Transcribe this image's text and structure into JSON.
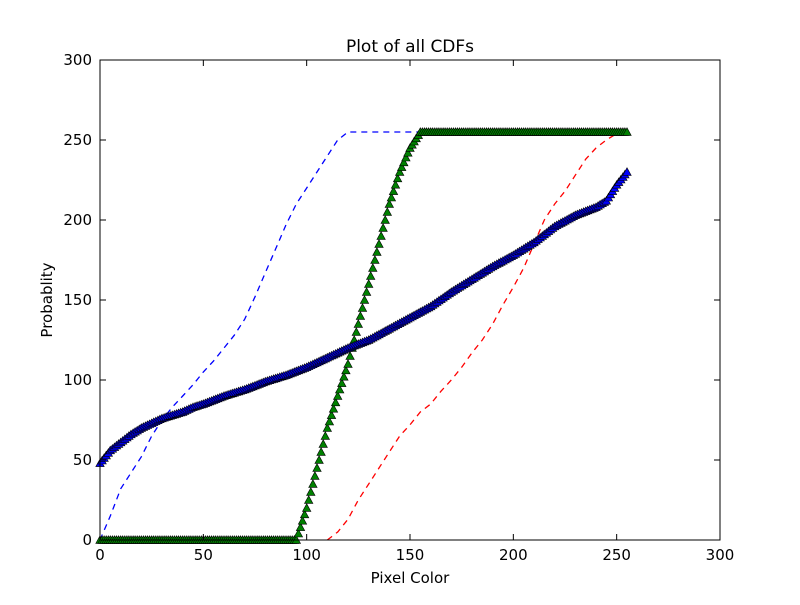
{
  "chart_data": {
    "type": "line",
    "title": "Plot of all CDFs",
    "xlabel": "Pixel Color",
    "ylabel": "Probablity",
    "xlim": [
      0,
      300
    ],
    "ylim": [
      0,
      300
    ],
    "xticks": [
      0,
      50,
      100,
      150,
      200,
      250,
      300
    ],
    "yticks": [
      0,
      50,
      100,
      150,
      200,
      250,
      300
    ],
    "grid": false,
    "legend": "none",
    "series": [
      {
        "style": "dashed-line",
        "color": "#0000ff",
        "x": [
          0,
          5,
          10,
          15,
          20,
          25,
          30,
          35,
          40,
          45,
          50,
          55,
          60,
          65,
          70,
          75,
          80,
          85,
          90,
          95,
          100,
          105,
          110,
          115,
          120,
          125,
          130,
          135,
          140,
          145,
          150,
          155
        ],
        "y": [
          0,
          15,
          32,
          42,
          52,
          65,
          75,
          83,
          90,
          97,
          105,
          112,
          120,
          128,
          138,
          152,
          167,
          182,
          197,
          210,
          220,
          230,
          240,
          250,
          255,
          255,
          255,
          255,
          255,
          255,
          255,
          255
        ]
      },
      {
        "style": "dashed-line",
        "color": "#ff0000",
        "x": [
          110,
          115,
          120,
          125,
          130,
          135,
          140,
          145,
          150,
          155,
          160,
          165,
          170,
          175,
          180,
          185,
          190,
          195,
          200,
          205,
          210,
          215,
          220,
          225,
          230,
          235,
          240,
          245,
          250,
          255
        ],
        "y": [
          0,
          5,
          13,
          25,
          35,
          45,
          55,
          65,
          72,
          80,
          85,
          93,
          100,
          108,
          117,
          125,
          135,
          147,
          158,
          170,
          185,
          200,
          210,
          218,
          228,
          238,
          245,
          250,
          254,
          255
        ]
      },
      {
        "style": "triangle-markers",
        "color": "#008000",
        "x": [
          0,
          10,
          20,
          30,
          40,
          50,
          60,
          70,
          80,
          90,
          95,
          100,
          105,
          110,
          115,
          120,
          125,
          130,
          135,
          140,
          145,
          150,
          155,
          160,
          170,
          180,
          190,
          200,
          210,
          220,
          230,
          240,
          250,
          255
        ],
        "y": [
          0,
          0,
          0,
          0,
          0,
          0,
          0,
          0,
          0,
          0,
          0,
          20,
          45,
          70,
          90,
          110,
          135,
          160,
          185,
          210,
          230,
          245,
          255,
          255,
          255,
          255,
          255,
          255,
          255,
          255,
          255,
          255,
          255,
          255
        ]
      },
      {
        "style": "triangle-markers",
        "color": "#0000ff",
        "x": [
          0,
          5,
          10,
          15,
          20,
          25,
          30,
          35,
          40,
          45,
          50,
          60,
          70,
          80,
          90,
          100,
          110,
          120,
          130,
          140,
          150,
          160,
          170,
          180,
          190,
          200,
          210,
          220,
          230,
          240,
          245,
          250,
          255
        ],
        "y": [
          48,
          56,
          61,
          66,
          70,
          73,
          76,
          78,
          80,
          83,
          85,
          90,
          94,
          99,
          103,
          108,
          114,
          120,
          125,
          132,
          139,
          146,
          155,
          163,
          171,
          178,
          186,
          196,
          203,
          208,
          212,
          222,
          230
        ]
      }
    ]
  }
}
